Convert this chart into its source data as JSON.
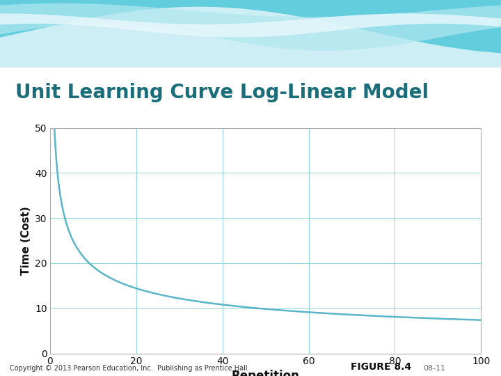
{
  "title": "Unit Learning Curve Log-Linear Model",
  "xlabel": "Repetition",
  "ylabel": "Time (Cost)",
  "xlim": [
    0,
    100
  ],
  "ylim": [
    0,
    50
  ],
  "xticks": [
    0,
    20,
    40,
    60,
    80,
    100
  ],
  "yticks": [
    0,
    10,
    20,
    30,
    40,
    50
  ],
  "curve_color": "#5ab5c8",
  "curve_linewidth": 1.8,
  "grid_color": "#8dd4e0",
  "grid_linewidth": 0.7,
  "plot_bg_color": "#ffffff",
  "fig_bg_color": "#ffffff",
  "bottom_bg_color": "#f0fafc",
  "title_color": "#1a6e7a",
  "axis_label_color": "#111111",
  "tick_label_color": "#111111",
  "copyright_text": "Copyright © 2013 Pearson Education, Inc.  Publishing as Prentice Hall",
  "figure_label": "FIGURE 8.4",
  "figure_number_suffix": "08-11",
  "curve_start_x": 0.5,
  "curve_end_x": 100,
  "T1": 50.0,
  "b": -0.415,
  "wave_color1": "#5ecfde",
  "wave_color2": "#a8e8f0",
  "wave_color3": "#c8f0f8"
}
